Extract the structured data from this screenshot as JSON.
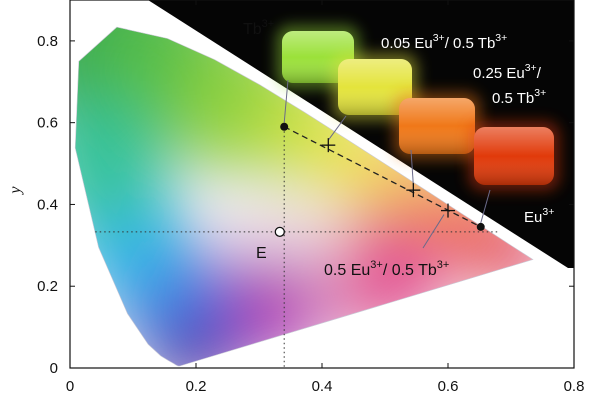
{
  "chart_data": {
    "type": "scatter",
    "title": "",
    "xlabel": "",
    "ylabel": "y",
    "xlim": [
      0,
      0.8
    ],
    "ylim": [
      0,
      0.9
    ],
    "x_ticks": [
      0,
      0.2,
      0.4,
      0.6,
      0.8
    ],
    "y_ticks": [
      0,
      0.2,
      0.4,
      0.6,
      0.8
    ],
    "spectral_locus": [
      [
        0.1741,
        0.005
      ],
      [
        0.1738,
        0.0049
      ],
      [
        0.1733,
        0.0048
      ],
      [
        0.1726,
        0.0048
      ],
      [
        0.1714,
        0.0051
      ],
      [
        0.1689,
        0.0069
      ],
      [
        0.1644,
        0.0109
      ],
      [
        0.1566,
        0.0177
      ],
      [
        0.144,
        0.0297
      ],
      [
        0.1241,
        0.0578
      ],
      [
        0.0913,
        0.1327
      ],
      [
        0.0454,
        0.295
      ],
      [
        0.0082,
        0.5384
      ],
      [
        0.0139,
        0.7502
      ],
      [
        0.0743,
        0.8338
      ],
      [
        0.1547,
        0.8059
      ],
      [
        0.2296,
        0.7543
      ],
      [
        0.3016,
        0.6923
      ],
      [
        0.3731,
        0.6245
      ],
      [
        0.4441,
        0.5547
      ],
      [
        0.5125,
        0.4866
      ],
      [
        0.5752,
        0.4242
      ],
      [
        0.627,
        0.3725
      ],
      [
        0.6658,
        0.334
      ],
      [
        0.6915,
        0.3083
      ],
      [
        0.7079,
        0.292
      ],
      [
        0.719,
        0.2809
      ],
      [
        0.7347,
        0.2653
      ]
    ],
    "points": [
      {
        "label": "Tb3+",
        "x": 0.34,
        "y": 0.59,
        "marker": "dot"
      },
      {
        "label": "0.05 Eu3+ / 0.5 Tb3+",
        "x": 0.41,
        "y": 0.545,
        "marker": "cross"
      },
      {
        "label": "0.25 Eu3+ / 0.5 Tb3+",
        "x": 0.545,
        "y": 0.435,
        "marker": "cross"
      },
      {
        "label": "0.5 Eu3+ / 0.5 Tb3+",
        "x": 0.6,
        "y": 0.385,
        "marker": "cross"
      },
      {
        "label": "Eu3+",
        "x": 0.652,
        "y": 0.345,
        "marker": "dot"
      },
      {
        "label": "E",
        "x": 0.333,
        "y": 0.333,
        "marker": "open-circle"
      }
    ],
    "annotations": [
      {
        "base": "Tb",
        "sup": "3+"
      },
      {
        "base": "0.05 Eu",
        "sup": "3+",
        "rest": "/ 0.5 Tb",
        "sup2": "3+"
      },
      {
        "base": "0.25 Eu",
        "sup": "3+",
        "rest": "/"
      },
      {
        "base": "0.5 Tb",
        "sup": "3+"
      },
      {
        "base": "Eu",
        "sup": "3+"
      },
      {
        "base": "0.5 Eu",
        "sup": "3+",
        "rest": "/ 0.5 Tb",
        "sup2": "3+"
      },
      {
        "base": "E"
      }
    ],
    "grid": false,
    "colors": {
      "photo_background": "#050505",
      "sample_tb": "#9be13a",
      "sample_005": "#e4e43c",
      "sample_025": "#f07818",
      "sample_eu": "#e13a0a"
    }
  }
}
